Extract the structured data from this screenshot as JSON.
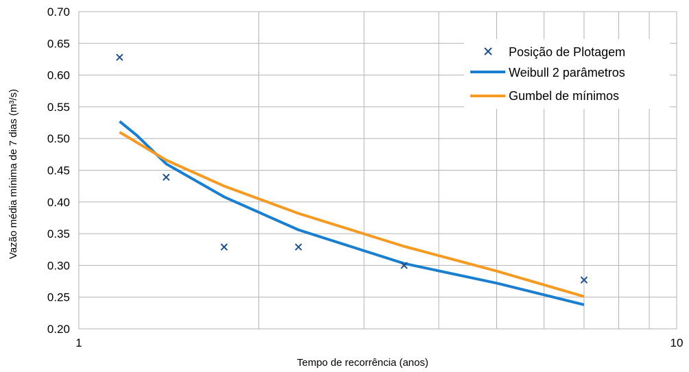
{
  "chart_data": {
    "type": "scatter",
    "title": "",
    "xlabel": "Tempo de recorrência (anos)",
    "ylabel": "Vazão média mínima de 7 dias (m³/s)",
    "x_scale": "log",
    "xlim": [
      1,
      10
    ],
    "ylim": [
      0.2,
      0.7
    ],
    "x_ticks": [
      "1",
      "10"
    ],
    "y_ticks": [
      "0.20",
      "0.25",
      "0.30",
      "0.35",
      "0.40",
      "0.45",
      "0.50",
      "0.55",
      "0.60",
      "0.65",
      "0.70"
    ],
    "grid": true,
    "legend_position": "top-right",
    "series": [
      {
        "name": "Posição de Plotagem",
        "kind": "markers",
        "marker": "x",
        "color": "#1f4e8c",
        "x": [
          1.17,
          1.4,
          1.75,
          2.33,
          3.5,
          7.0
        ],
        "y": [
          0.628,
          0.439,
          0.329,
          0.329,
          0.3,
          0.277
        ]
      },
      {
        "name": "Weibull 2 parâmetros",
        "kind": "line",
        "color": "#1b7fd0",
        "x": [
          1.17,
          1.25,
          1.4,
          1.75,
          2.33,
          3.5,
          5.0,
          7.0
        ],
        "y": [
          0.527,
          0.505,
          0.46,
          0.408,
          0.356,
          0.303,
          0.272,
          0.238
        ]
      },
      {
        "name": "Gumbel de mínimos",
        "kind": "line",
        "color": "#f59a23",
        "x": [
          1.17,
          1.4,
          1.75,
          2.33,
          3.5,
          5.0,
          7.0
        ],
        "y": [
          0.51,
          0.466,
          0.425,
          0.382,
          0.33,
          0.291,
          0.251
        ]
      }
    ]
  }
}
